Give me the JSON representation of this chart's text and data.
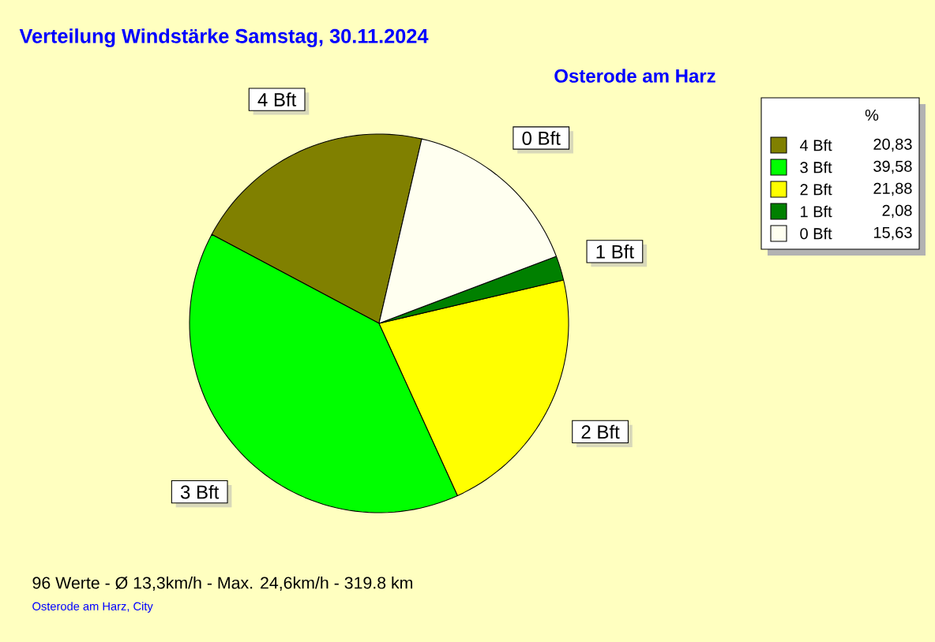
{
  "chart_data": {
    "type": "pie",
    "title": "Verteilung Windstärke  Samstag, 30.11.2024",
    "subtitle": "Osterode am Harz",
    "legend_title": "%",
    "legend": "top right",
    "categories": [
      "4 Bft",
      "3 Bft",
      "2 Bft",
      "1 Bft",
      "0 Bft"
    ],
    "values": [
      20.83,
      39.58,
      21.88,
      2.08,
      15.63
    ],
    "value_labels": [
      "20,83",
      "39,58",
      "21,88",
      "2,08",
      "15,63"
    ],
    "colors": [
      "#808000",
      "#00ff00",
      "#ffff00",
      "#008000",
      "#fffff0"
    ],
    "annotations": [
      "96 Werte  -  Ø 13,3km/h  -  Max. 24,6km/h  -  319.8 km",
      "Osterode am Harz, City"
    ]
  }
}
